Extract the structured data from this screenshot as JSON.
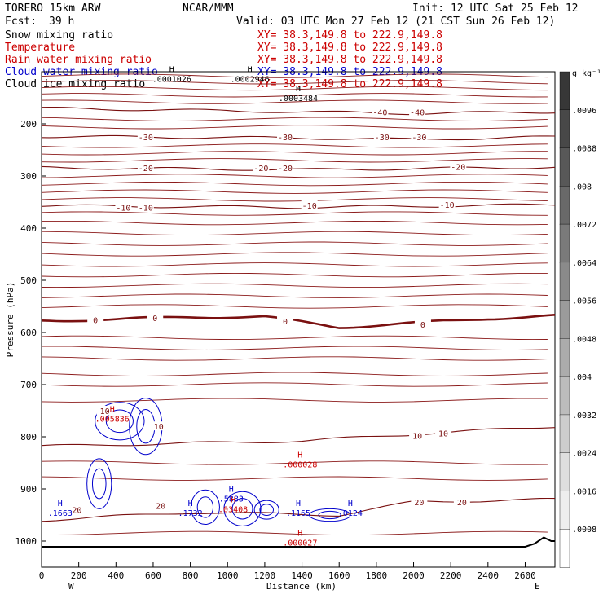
{
  "header": {
    "model": "TORERO   15km ARW",
    "org": "NCAR/MMM",
    "init": "Init: 12 UTC Sat 25 Feb 12",
    "fcst_label": "Fcst:",
    "fcst_value": "39 h",
    "valid": "Valid: 03 UTC Mon 27 Feb 12 (21 CST Sun 26 Feb 12)"
  },
  "fields": [
    {
      "name": "Snow mixing ratio",
      "xy": "XY=  38.3,149.8 to 222.9,149.8",
      "color": "#000000"
    },
    {
      "name": "Temperature",
      "xy": "XY=  38.3,149.8 to 222.9,149.8",
      "color": "#cc0000"
    },
    {
      "name": "Rain water mixing ratio",
      "xy": "XY=  38.3,149.8 to 222.9,149.8",
      "color": "#cc0000"
    },
    {
      "name": "Cloud water mixing ratio",
      "xy": "XY=  38.3,149.8 to 222.9,149.8",
      "color": "#0000cc"
    },
    {
      "name": "Cloud ice mixing ratio",
      "xy": "XY=  38.3,149.8 to 222.9,149.8",
      "color": "#000000"
    }
  ],
  "colorbar": {
    "unit": "g kg⁻¹",
    "labels": [
      ".0096",
      ".0088",
      ".008",
      ".0072",
      ".0064",
      ".0056",
      ".0048",
      ".004",
      ".0032",
      ".0024",
      ".0016",
      ".0008"
    ],
    "levels": [
      0.0008,
      0.0016,
      0.0024,
      0.0032,
      0.004,
      0.0048,
      0.0056,
      0.0064,
      0.0072,
      0.008,
      0.0088,
      0.0096
    ]
  },
  "chart_data": {
    "type": "contour",
    "xlabel": "Distance (km)",
    "ylabel": "Pressure (hPa)",
    "xlim": [
      0,
      2760
    ],
    "ylim": [
      1050,
      100
    ],
    "x_ticks": [
      0,
      200,
      400,
      600,
      800,
      1000,
      1200,
      1400,
      1600,
      1800,
      2000,
      2200,
      2400,
      2600
    ],
    "y_ticks": [
      200,
      300,
      400,
      500,
      600,
      700,
      800,
      900,
      1000
    ],
    "x_endpoints": {
      "left": "W",
      "right": "E"
    },
    "temperature_isotherms_C": [
      {
        "value": -40,
        "pressure_at_x": [
          [
            0,
            170
          ],
          [
            1400,
            177
          ],
          [
            2000,
            180
          ],
          [
            2760,
            177
          ]
        ]
      },
      {
        "value": -30,
        "pressure_at_x": [
          [
            0,
            224
          ],
          [
            1400,
            227
          ],
          [
            2000,
            230
          ],
          [
            2760,
            225
          ]
        ]
      },
      {
        "value": -20,
        "pressure_at_x": [
          [
            0,
            284
          ],
          [
            1400,
            288
          ],
          [
            2000,
            286
          ],
          [
            2760,
            283
          ]
        ]
      },
      {
        "value": -10,
        "pressure_at_x": [
          [
            0,
            357
          ],
          [
            1400,
            360
          ],
          [
            2000,
            358
          ],
          [
            2760,
            355
          ]
        ]
      },
      {
        "value": 0,
        "pressure_at_x": [
          [
            0,
            577
          ],
          [
            400,
            575
          ],
          [
            800,
            570
          ],
          [
            1200,
            570
          ],
          [
            1600,
            590
          ],
          [
            2000,
            582
          ],
          [
            2400,
            573
          ],
          [
            2760,
            568
          ]
        ]
      },
      {
        "value": 10,
        "pressure_at_x": [
          [
            0,
            818
          ],
          [
            1400,
            808
          ],
          [
            2000,
            795
          ],
          [
            2760,
            780
          ]
        ]
      },
      {
        "value": 20,
        "pressure_at_x": [
          [
            0,
            960
          ],
          [
            800,
            945
          ],
          [
            1600,
            950
          ],
          [
            2000,
            925
          ],
          [
            2760,
            920
          ]
        ]
      }
    ],
    "contour_labels": [
      {
        "text": "-40",
        "x": 1820,
        "p": 177
      },
      {
        "text": "-40",
        "x": 2020,
        "p": 177
      },
      {
        "text": "-30",
        "x": 560,
        "p": 225
      },
      {
        "text": "-30",
        "x": 1310,
        "p": 225
      },
      {
        "text": "-30",
        "x": 1830,
        "p": 225
      },
      {
        "text": "-30",
        "x": 2030,
        "p": 225
      },
      {
        "text": "-20",
        "x": 560,
        "p": 284
      },
      {
        "text": "-20",
        "x": 1180,
        "p": 284
      },
      {
        "text": "-20",
        "x": 1310,
        "p": 284
      },
      {
        "text": "-20",
        "x": 2240,
        "p": 282
      },
      {
        "text": "-10",
        "x": 440,
        "p": 360
      },
      {
        "text": "-10",
        "x": 560,
        "p": 360
      },
      {
        "text": "-10",
        "x": 1440,
        "p": 356
      },
      {
        "text": "-10",
        "x": 2180,
        "p": 355
      },
      {
        "text": "0",
        "x": 290,
        "p": 576
      },
      {
        "text": "0",
        "x": 610,
        "p": 572
      },
      {
        "text": "0",
        "x": 1310,
        "p": 578
      },
      {
        "text": "0",
        "x": 2050,
        "p": 584
      },
      {
        "text": "10",
        "x": 340,
        "p": 750
      },
      {
        "text": "10",
        "x": 630,
        "p": 780
      },
      {
        "text": "10",
        "x": 2020,
        "p": 798
      },
      {
        "text": "10",
        "x": 2160,
        "p": 793
      },
      {
        "text": "20",
        "x": 190,
        "p": 940
      },
      {
        "text": "20",
        "x": 640,
        "p": 932
      },
      {
        "text": "20",
        "x": 2030,
        "p": 925
      },
      {
        "text": "20",
        "x": 2260,
        "p": 925
      }
    ],
    "max_markers": [
      {
        "text": ".1663",
        "x": 100,
        "p": 945,
        "color": "#0000cc"
      },
      {
        "text": ".1732",
        "x": 800,
        "p": 945,
        "color": "#0000cc"
      },
      {
        "text": ".1165",
        "x": 1380,
        "p": 945,
        "color": "#0000cc"
      },
      {
        "text": ".0124",
        "x": 1660,
        "p": 945,
        "color": "#0000cc"
      },
      {
        "text": ".005836",
        "x": 380,
        "p": 765,
        "color": "#cc0000"
      },
      {
        "text": ".000028",
        "x": 1390,
        "p": 852,
        "color": "#cc0000"
      },
      {
        "text": ".000027",
        "x": 1390,
        "p": 1002,
        "color": "#cc0000"
      },
      {
        "text": ".5883",
        "x": 1020,
        "p": 918,
        "color": "#0000cc"
      },
      {
        "text": ".03408",
        "x": 1030,
        "p": 938,
        "color": "#cc0000"
      },
      {
        "text": ".0003484",
        "x": 1380,
        "p": 150,
        "color": "#000000"
      },
      {
        "text": ".0001026",
        "x": 700,
        "p": 113,
        "color": "#000000"
      },
      {
        "text": ".0002946",
        "x": 1120,
        "p": 113,
        "color": "#000000"
      }
    ],
    "cloud_water_regions": [
      {
        "x": 420,
        "p": 770,
        "w": 120,
        "h": 60
      },
      {
        "x": 560,
        "p": 780,
        "w": 80,
        "h": 90
      },
      {
        "x": 310,
        "p": 890,
        "w": 60,
        "h": 80
      },
      {
        "x": 880,
        "p": 935,
        "w": 70,
        "h": 55
      },
      {
        "x": 1080,
        "p": 938,
        "w": 90,
        "h": 55
      },
      {
        "x": 1210,
        "p": 940,
        "w": 60,
        "h": 30
      },
      {
        "x": 1550,
        "p": 950,
        "w": 100,
        "h": 20
      }
    ],
    "terrain_p_at_x": [
      [
        0,
        1011
      ],
      [
        2500,
        1011
      ],
      [
        2600,
        1011
      ],
      [
        2650,
        1005
      ],
      [
        2700,
        993
      ],
      [
        2740,
        1000
      ],
      [
        2760,
        1000
      ]
    ]
  }
}
